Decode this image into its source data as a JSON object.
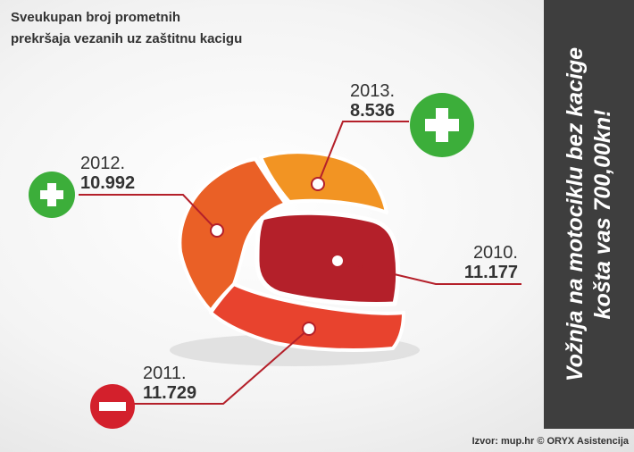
{
  "title": "Sveukupan broj prometnih\nprekršaja vezanih uz zaštitnu kacigu",
  "sidebar_text": "Vožnja na motociklu bez kacige\nkošta vas 700,00kn!",
  "source": "Izvor: mup.hr © ORYX Asistencija",
  "colors": {
    "2010": "#b4202a",
    "2011": "#e8432e",
    "2012": "#ea6026",
    "2013": "#f29423",
    "plus": "#3cae3a",
    "minus": "#d3202c"
  },
  "chart_data": {
    "type": "infographic",
    "categories": [
      "2010.",
      "2011.",
      "2012.",
      "2013."
    ],
    "values": [
      "11.177",
      "11.729",
      "10.992",
      "8.536"
    ],
    "trend_icons": [
      {
        "category": "2011.",
        "icon": "minus-icon"
      },
      {
        "category": "2012.",
        "icon": "plus-icon"
      },
      {
        "category": "2013.",
        "icon": "plus-icon"
      }
    ]
  }
}
